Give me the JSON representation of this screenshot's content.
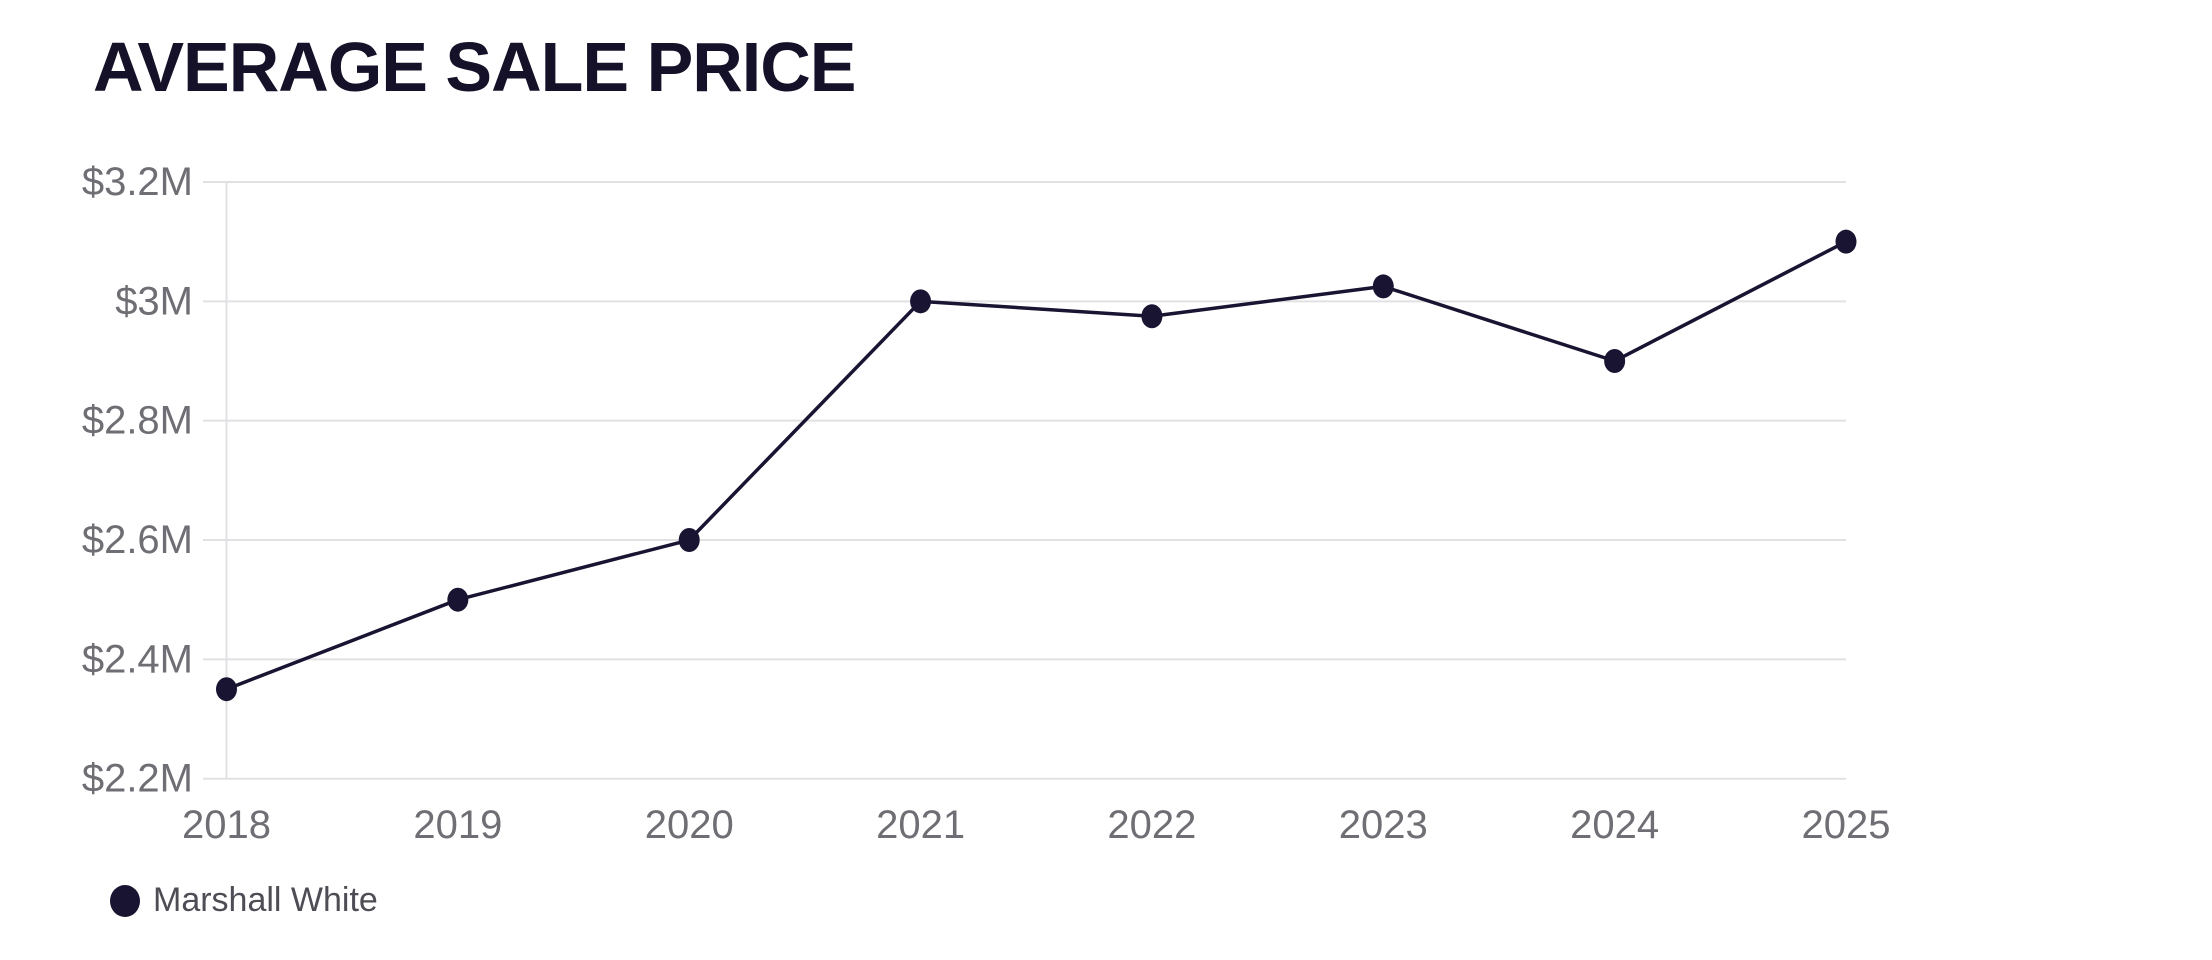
{
  "title": "AVERAGE SALE PRICE",
  "legend": {
    "label": "Marshall White"
  },
  "colors": {
    "background": "#ffffff",
    "series": "#191432",
    "title": "#141128",
    "axis_label": "#6e6e74",
    "legend_label": "#4d4d55",
    "gridline": "#e1e1e4"
  },
  "chart_data": {
    "type": "line",
    "title": "AVERAGE SALE PRICE",
    "categories": [
      "2018",
      "2019",
      "2020",
      "2021",
      "2022",
      "2023",
      "2024",
      "2025"
    ],
    "series": [
      {
        "name": "Marshall White",
        "values": [
          2.35,
          2.5,
          2.6,
          3.0,
          2.975,
          3.025,
          2.9,
          3.1
        ]
      }
    ],
    "unit": "millions_usd",
    "xlabel": "",
    "ylabel": "",
    "ylim": [
      2.2,
      3.2
    ],
    "yticks": [
      2.2,
      2.4,
      2.6,
      2.8,
      3.0,
      3.2
    ],
    "ytick_labels": [
      "$2.2M",
      "$2.4M",
      "$2.6M",
      "$2.8M",
      "$3M",
      "$3.2M"
    ],
    "grid": true,
    "marker": "circle",
    "legend_position": "bottom-left"
  }
}
